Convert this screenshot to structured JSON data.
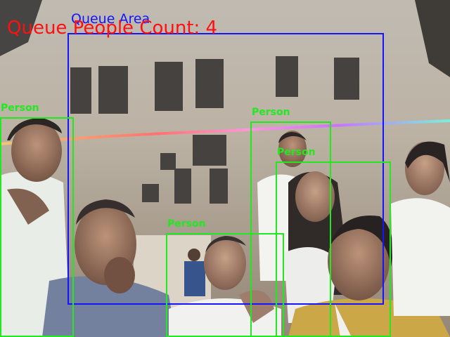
{
  "overlay": {
    "count_text": "Queue People Count: 4",
    "queue_area_label": "Queue Area",
    "detections": [
      {
        "label": "Person"
      },
      {
        "label": "Person"
      },
      {
        "label": "Person"
      },
      {
        "label": "Person"
      }
    ]
  },
  "colors": {
    "count_text": "#ff1010",
    "queue_area": "#1414ff",
    "person_box": "#22e81f"
  }
}
